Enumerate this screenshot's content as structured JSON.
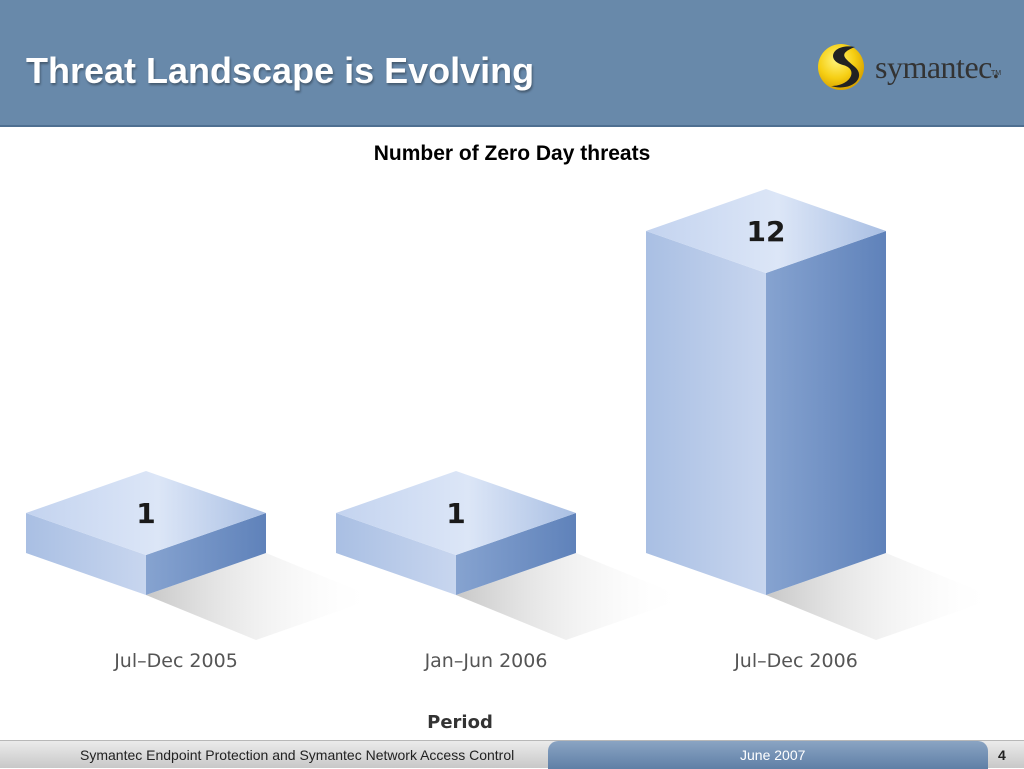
{
  "slide": {
    "title": "Threat Landscape is Evolving",
    "logo_text": "symantec.",
    "logo_tm": "TM"
  },
  "footer": {
    "left_text": "Symantec Endpoint Protection and Symantec Network Access Control",
    "date": "June 2007",
    "page": "4"
  },
  "colors": {
    "header": "#6889aa",
    "bar_face_light": "#b9cbe9",
    "bar_face_dark": "#6e8fc2",
    "bar_top": "#d4e0f4",
    "tick_text": "#555555",
    "axis_label": "#333333"
  },
  "chart_data": {
    "type": "bar",
    "title": "Number of Zero Day threats",
    "xlabel": "Period",
    "ylabel": "",
    "categories": [
      "Jul–Dec 2005",
      "Jan–Jun 2006",
      "Jul–Dec 2006"
    ],
    "values": [
      1,
      1,
      12
    ],
    "data_labels": [
      "1",
      "1",
      "12"
    ],
    "ylim": [
      0,
      12
    ],
    "grid": false,
    "legend": "none"
  }
}
